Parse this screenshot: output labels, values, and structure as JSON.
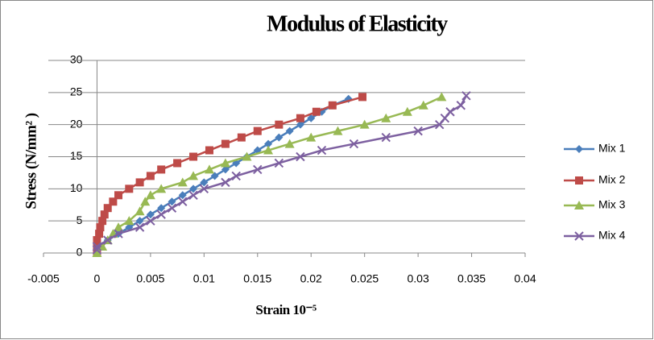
{
  "chart_data": {
    "type": "scatter_line",
    "title": "Modulus of Elasticity",
    "x_label": "Strain 10⁻⁵",
    "y_label": "Stress (N/mm² )",
    "xlim": [
      -0.005,
      0.04
    ],
    "xticks": [
      -0.005,
      0,
      0.005,
      0.01,
      0.015,
      0.02,
      0.025,
      0.03,
      0.035,
      0.04
    ],
    "ylim": [
      0,
      30
    ],
    "yticks": [
      0,
      5,
      10,
      15,
      20,
      25,
      30
    ],
    "grid": true,
    "legend": "right",
    "series": [
      {
        "name": "Mix 1",
        "color": "#4a7ebb",
        "marker": "diamond",
        "x": [
          0,
          0,
          0.001,
          0.002,
          0.003,
          0.004,
          0.005,
          0.006,
          0.007,
          0.008,
          0.009,
          0.01,
          0.011,
          0.012,
          0.013,
          0.014,
          0.015,
          0.016,
          0.017,
          0.018,
          0.019,
          0.02,
          0.021,
          0.022,
          0.0235
        ],
        "values": [
          0.5,
          1,
          2,
          3,
          4,
          5,
          6,
          7,
          8,
          9,
          10,
          11,
          12,
          13,
          14,
          15,
          16,
          17,
          18,
          19,
          20,
          21,
          22,
          23,
          24
        ]
      },
      {
        "name": "Mix 2",
        "color": "#be4b48",
        "marker": "square",
        "x": [
          0,
          0,
          0,
          0.0002,
          0.0003,
          0.0005,
          0.0007,
          0.001,
          0.0015,
          0.002,
          0.003,
          0.004,
          0.005,
          0.006,
          0.0075,
          0.009,
          0.0105,
          0.012,
          0.0135,
          0.015,
          0.017,
          0.019,
          0.0205,
          0.022,
          0.0248
        ],
        "values": [
          0,
          1,
          2,
          3,
          4,
          5,
          6,
          7,
          8,
          9,
          10,
          11,
          12,
          13,
          14,
          15,
          16,
          17,
          18,
          19,
          20,
          21,
          22,
          23,
          24.3
        ]
      },
      {
        "name": "Mix 3",
        "color": "#98b954",
        "marker": "triangle",
        "x": [
          0,
          0.0005,
          0.001,
          0.0015,
          0.002,
          0.003,
          0.004,
          0.0045,
          0.005,
          0.006,
          0.008,
          0.009,
          0.0105,
          0.012,
          0.014,
          0.016,
          0.018,
          0.02,
          0.0225,
          0.025,
          0.027,
          0.029,
          0.0305,
          0.0322
        ],
        "values": [
          0,
          1,
          2,
          3,
          4,
          5,
          6.5,
          8,
          9,
          10,
          11,
          12,
          13,
          14,
          15,
          16,
          17,
          18,
          19,
          20,
          21,
          22,
          23,
          24.3
        ]
      },
      {
        "name": "Mix 4",
        "color": "#7d60a0",
        "marker": "x",
        "x": [
          0,
          0,
          0.001,
          0.002,
          0.004,
          0.005,
          0.006,
          0.007,
          0.008,
          0.009,
          0.01,
          0.012,
          0.013,
          0.015,
          0.017,
          0.019,
          0.021,
          0.024,
          0.027,
          0.03,
          0.032,
          0.0325,
          0.033,
          0.034,
          0.0345
        ],
        "values": [
          0.5,
          1,
          2,
          3,
          4,
          5,
          6,
          7,
          8,
          9,
          10,
          11,
          12,
          13,
          14,
          15,
          16,
          17,
          18,
          19,
          20,
          21,
          22,
          23,
          24.5
        ]
      }
    ]
  }
}
